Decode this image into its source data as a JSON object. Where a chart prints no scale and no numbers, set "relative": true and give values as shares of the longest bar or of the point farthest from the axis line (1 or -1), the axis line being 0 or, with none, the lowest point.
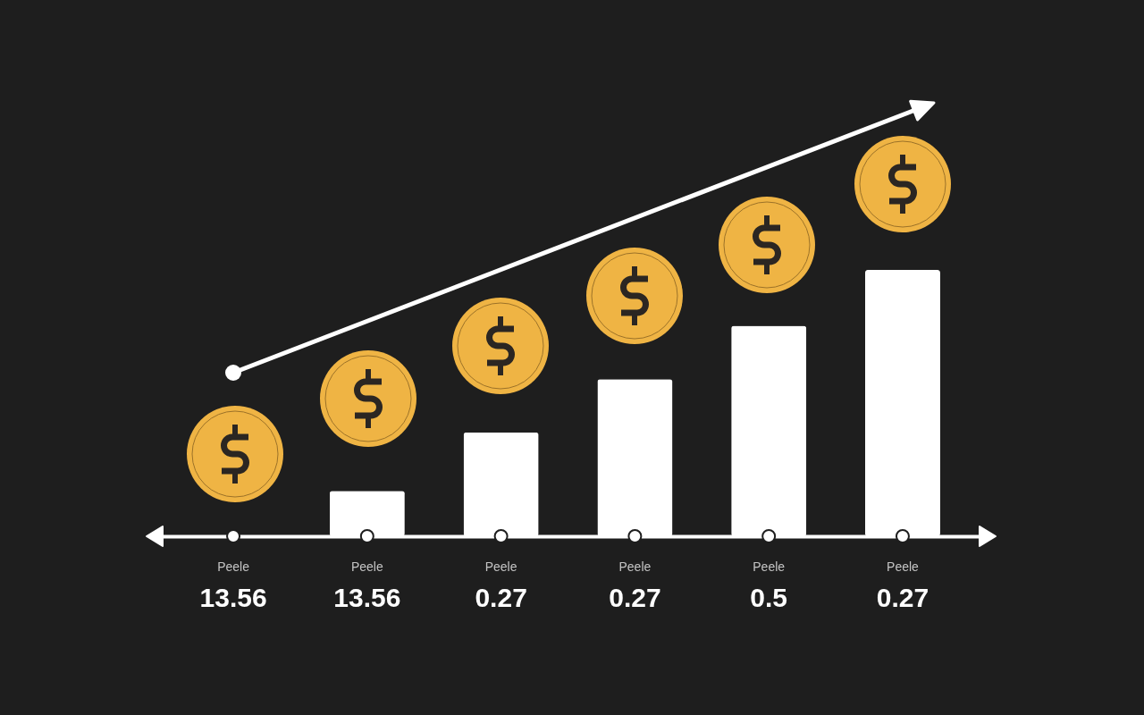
{
  "chart_data": {
    "type": "bar",
    "relative": true,
    "color": "#ffffff",
    "categories": [
      "Peele",
      "Peele",
      "Peele",
      "Peele",
      "Peele",
      "Peele"
    ],
    "values": [
      null,
      0.17,
      0.39,
      0.59,
      0.79,
      1
    ],
    "annotations": [
      "13.56",
      "13.56",
      "0.27",
      "0.27",
      "0.5",
      "0.27"
    ]
  }
}
